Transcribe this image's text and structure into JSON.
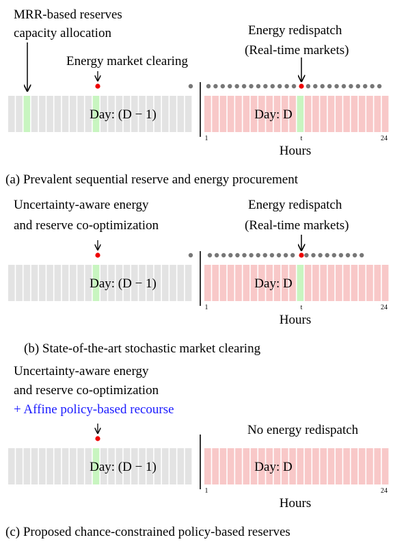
{
  "panels": [
    {
      "labels": [
        "MRR-based reserves",
        "capacity allocation"
      ],
      "clearing_label": "Energy market clearing",
      "redispatch_labels": [
        "Energy redispatch",
        "(Real-time markets)"
      ],
      "day_prev": "Day: (D − 1)",
      "day": "Day: D",
      "hour_ticks": [
        "1",
        "t",
        "24"
      ],
      "hours_label": "Hours",
      "caption": "(a) Prevalent sequential reserve and energy procurement"
    },
    {
      "labels": [
        "Uncertainty-aware energy",
        "and reserve co-optimization"
      ],
      "redispatch_labels": [
        "Energy redispatch",
        "(Real-time markets)"
      ],
      "day_prev": "Day: (D − 1)",
      "day": "Day: D",
      "hour_ticks": [
        "1",
        "t",
        "24"
      ],
      "hours_label": "Hours",
      "caption": "(b) State-of-the-art stochastic market clearing"
    },
    {
      "labels": [
        "Uncertainty-aware energy",
        "and reserve co-optimization"
      ],
      "highlight": "+ Affine policy-based recourse",
      "redispatch_labels": [
        "No energy redispatch"
      ],
      "day_prev": "Day: (D − 1)",
      "day": "Day: D",
      "hour_ticks": [
        "1",
        "24"
      ],
      "hours_label": "Hours",
      "caption": "(c) Proposed chance-constrained policy-based reserves"
    }
  ]
}
